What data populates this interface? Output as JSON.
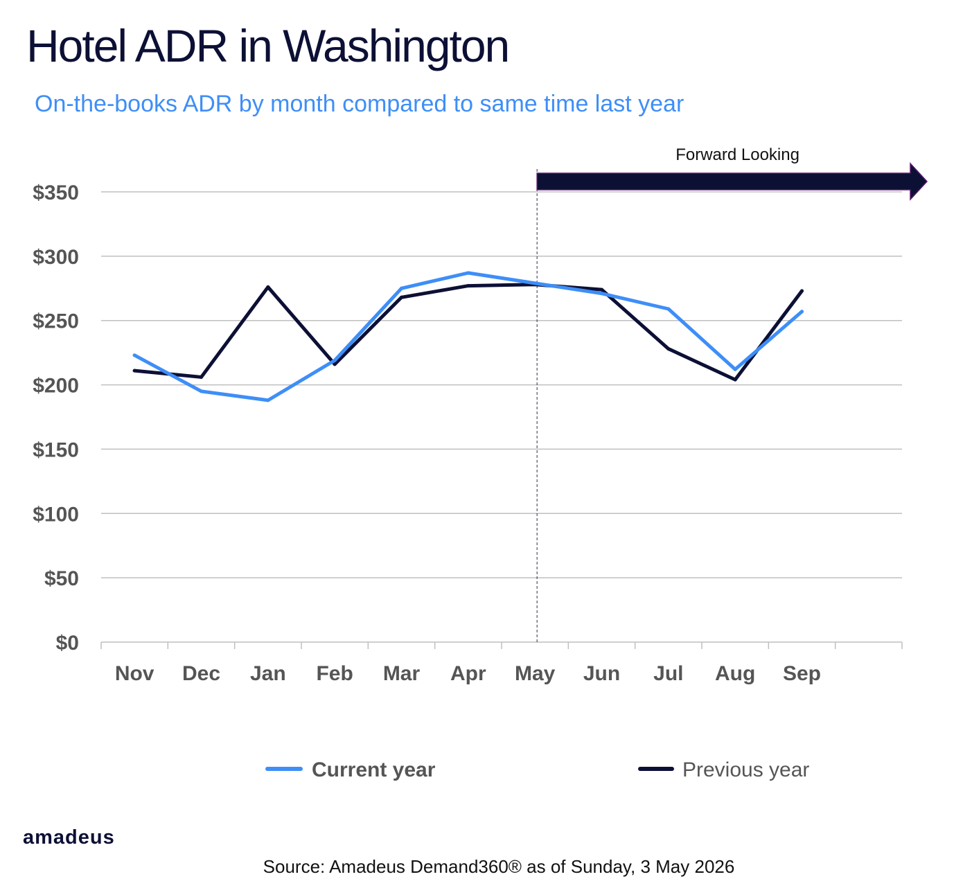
{
  "header": {
    "title": "Hotel ADR  in  Washington",
    "subtitle": "On-the-books ADR by month compared to same time last year"
  },
  "footer": {
    "logo": "amadeus",
    "source": "Source: Amadeus Demand360® as of Sunday, 3 May 2026"
  },
  "colors": {
    "current": "#3e8ef7",
    "previous": "#0d1035",
    "grid": "#bfbfbf",
    "title": "#0d1035"
  },
  "chart_data": {
    "type": "line",
    "title": "Hotel ADR  in  Washington",
    "subtitle": "On-the-books ADR by month compared to same time last year",
    "categories": [
      "Nov",
      "Dec",
      "Jan",
      "Feb",
      "Mar",
      "Apr",
      "May",
      "Jun",
      "Jul",
      "Aug",
      "Sep"
    ],
    "y_ticks": [
      "$0",
      "$50",
      "$100",
      "$150",
      "$200",
      "$250",
      "$300",
      "$350"
    ],
    "ylim": [
      0,
      350
    ],
    "grid": true,
    "legend_position": "bottom",
    "annotation": {
      "label": "Forward Looking",
      "start_category": "May"
    },
    "series": [
      {
        "name": "Current year",
        "color": "#3e8ef7",
        "values": [
          223,
          195,
          188,
          219,
          275,
          287,
          279,
          271,
          259,
          212,
          257
        ]
      },
      {
        "name": "Previous year",
        "color": "#0d1035",
        "values": [
          211,
          206,
          276,
          216,
          268,
          277,
          278,
          274,
          228,
          204,
          273
        ]
      }
    ]
  }
}
